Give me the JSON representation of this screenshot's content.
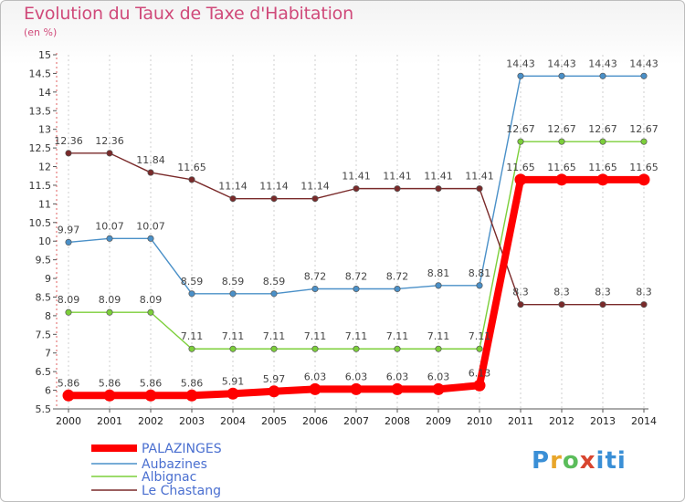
{
  "chart_data": {
    "type": "line",
    "title": "Evolution du Taux de Taxe d'Habitation",
    "subtitle": "(en %)",
    "x": [
      2000,
      2001,
      2002,
      2003,
      2004,
      2005,
      2006,
      2007,
      2008,
      2009,
      2010,
      2011,
      2012,
      2013,
      2014
    ],
    "ylim": [
      5.5,
      15
    ],
    "yticks": [
      5.5,
      6,
      6.5,
      7,
      7.5,
      8,
      8.5,
      9,
      9.5,
      10,
      10.5,
      11,
      11.5,
      12,
      12.5,
      13,
      13.5,
      14,
      14.5,
      15
    ],
    "grid": "vertical dashed",
    "legend_placement": "bottom-left",
    "series": [
      {
        "name": "PALAZINGES",
        "color": "#ff0000",
        "values": [
          5.86,
          5.86,
          5.86,
          5.86,
          5.91,
          5.97,
          6.03,
          6.03,
          6.03,
          6.03,
          6.13,
          11.65,
          11.65,
          11.65,
          11.65
        ],
        "labels": [
          "5.86",
          "5.86",
          "5.86",
          "5.86",
          "5.91",
          "5.97",
          "6.03",
          "6.03",
          "6.03",
          "6.03",
          "6.13",
          "11.65",
          "11.65",
          "11.65",
          "11.65"
        ]
      },
      {
        "name": "Aubazines",
        "color": "#4a90c8",
        "values": [
          9.97,
          10.07,
          10.07,
          8.59,
          8.59,
          8.59,
          8.72,
          8.72,
          8.72,
          8.81,
          8.81,
          14.43,
          14.43,
          14.43,
          14.43
        ],
        "labels": [
          "9.97",
          "10.07",
          "10.07",
          "8.59",
          "8.59",
          "8.59",
          "8.72",
          "8.72",
          "8.72",
          "8.81",
          "8.81",
          "14.43",
          "14.43",
          "14.43",
          "14.43"
        ]
      },
      {
        "name": "Albignac",
        "color": "#7ccf3a",
        "values": [
          8.09,
          8.09,
          8.09,
          7.11,
          7.11,
          7.11,
          7.11,
          7.11,
          7.11,
          7.11,
          7.11,
          12.67,
          12.67,
          12.67,
          12.67
        ],
        "labels": [
          "8.09",
          "8.09",
          "8.09",
          "7.11",
          "7.11",
          "7.11",
          "7.11",
          "7.11",
          "7.11",
          "7.11",
          "7.11",
          "12.67",
          "12.67",
          "12.67",
          "12.67"
        ]
      },
      {
        "name": "Le Chastang",
        "color": "#7a2a2a",
        "values": [
          12.36,
          12.36,
          11.84,
          11.65,
          11.14,
          11.14,
          11.14,
          11.41,
          11.41,
          11.41,
          11.41,
          8.3,
          8.3,
          8.3,
          8.3
        ],
        "labels": [
          "12.36",
          "12.36",
          "11.84",
          "11.65",
          "11.14",
          "11.14",
          "11.14",
          "11.41",
          "11.41",
          "11.41",
          "11.41",
          "8.3",
          "8.3",
          "8.3",
          "8.3"
        ]
      }
    ]
  },
  "logo": {
    "p": "P",
    "r": "r",
    "o": "o",
    "x": "x",
    "iti": "iti"
  }
}
